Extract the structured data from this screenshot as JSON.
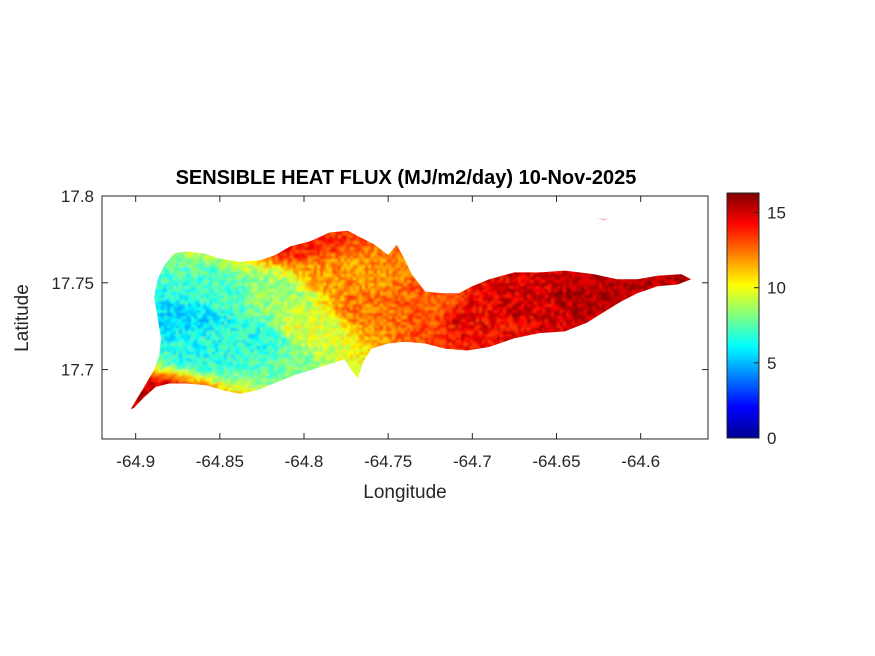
{
  "chart_data": {
    "type": "heatmap",
    "title": "SENSIBLE HEAT FLUX (MJ/m2/day) 10-Nov-2025",
    "xlabel": "Longitude",
    "ylabel": "Latitude",
    "xlim": [
      -64.92,
      -64.56
    ],
    "ylim": [
      17.66,
      17.8
    ],
    "x_ticks": [
      -64.9,
      -64.85,
      -64.8,
      -64.75,
      -64.7,
      -64.65,
      -64.6
    ],
    "x_tick_labels": [
      "-64.9",
      "-64.85",
      "-64.8",
      "-64.75",
      "-64.7",
      "-64.65",
      "-64.6"
    ],
    "y_ticks": [
      17.7,
      17.75,
      17.8
    ],
    "y_tick_labels": [
      "17.7",
      "17.75",
      "17.8"
    ],
    "colorbar": {
      "colormap": "jet",
      "limits": [
        0,
        16.3
      ],
      "ticks": [
        0,
        5,
        10,
        15
      ],
      "tick_labels": [
        "0",
        "5",
        "10",
        "15"
      ]
    },
    "grid": false,
    "island_outline": [
      [
        -64.901,
        17.678
      ],
      [
        -64.895,
        17.684
      ],
      [
        -64.888,
        17.69
      ],
      [
        -64.88,
        17.692
      ],
      [
        -64.87,
        17.692
      ],
      [
        -64.858,
        17.691
      ],
      [
        -64.848,
        17.688
      ],
      [
        -64.838,
        17.686
      ],
      [
        -64.828,
        17.688
      ],
      [
        -64.818,
        17.692
      ],
      [
        -64.805,
        17.697
      ],
      [
        -64.795,
        17.7
      ],
      [
        -64.782,
        17.704
      ],
      [
        -64.776,
        17.706
      ],
      [
        -64.772,
        17.7
      ],
      [
        -64.768,
        17.695
      ],
      [
        -64.765,
        17.704
      ],
      [
        -64.76,
        17.712
      ],
      [
        -64.75,
        17.715
      ],
      [
        -64.74,
        17.716
      ],
      [
        -64.728,
        17.715
      ],
      [
        -64.716,
        17.712
      ],
      [
        -64.703,
        17.711
      ],
      [
        -64.69,
        17.713
      ],
      [
        -64.675,
        17.718
      ],
      [
        -64.66,
        17.721
      ],
      [
        -64.645,
        17.722
      ],
      [
        -64.632,
        17.727
      ],
      [
        -64.622,
        17.733
      ],
      [
        -64.612,
        17.739
      ],
      [
        -64.602,
        17.744
      ],
      [
        -64.59,
        17.748
      ],
      [
        -64.578,
        17.749
      ],
      [
        -64.57,
        17.752
      ],
      [
        -64.576,
        17.755
      ],
      [
        -64.59,
        17.754
      ],
      [
        -64.602,
        17.752
      ],
      [
        -64.614,
        17.752
      ],
      [
        -64.628,
        17.755
      ],
      [
        -64.645,
        17.757
      ],
      [
        -64.66,
        17.756
      ],
      [
        -64.675,
        17.756
      ],
      [
        -64.69,
        17.752
      ],
      [
        -64.7,
        17.748
      ],
      [
        -64.708,
        17.744
      ],
      [
        -64.718,
        17.744
      ],
      [
        -64.728,
        17.745
      ],
      [
        -64.736,
        17.755
      ],
      [
        -64.741,
        17.765
      ],
      [
        -64.745,
        17.772
      ],
      [
        -64.75,
        17.766
      ],
      [
        -64.758,
        17.772
      ],
      [
        -64.766,
        17.776
      ],
      [
        -64.774,
        17.78
      ],
      [
        -64.785,
        17.779
      ],
      [
        -64.796,
        17.774
      ],
      [
        -64.808,
        17.771
      ],
      [
        -64.817,
        17.766
      ],
      [
        -64.826,
        17.763
      ],
      [
        -64.838,
        17.762
      ],
      [
        -64.85,
        17.764
      ],
      [
        -64.86,
        17.767
      ],
      [
        -64.87,
        17.768
      ],
      [
        -64.877,
        17.767
      ],
      [
        -64.883,
        17.76
      ],
      [
        -64.887,
        17.752
      ],
      [
        -64.889,
        17.742
      ],
      [
        -64.887,
        17.73
      ],
      [
        -64.885,
        17.718
      ],
      [
        -64.886,
        17.708
      ],
      [
        -64.889,
        17.7
      ],
      [
        -64.895,
        17.69
      ],
      [
        -64.9,
        17.682
      ],
      [
        -64.903,
        17.677
      ]
    ],
    "islet_outline": [
      [
        -64.626,
        17.787
      ],
      [
        -64.622,
        17.788
      ],
      [
        -64.619,
        17.787
      ],
      [
        -64.622,
        17.786
      ]
    ],
    "flux_pattern_notes": "Relative field: west end ~5-8 (cyan/green), central ~10-13 (yellow/orange), east end ~14-16 (red)",
    "flux_control_points": [
      {
        "lon": -64.87,
        "lat": 17.73,
        "value": 5.5
      },
      {
        "lon": -64.86,
        "lat": 17.715,
        "value": 6.5
      },
      {
        "lon": -64.85,
        "lat": 17.745,
        "value": 7.0
      },
      {
        "lon": -64.83,
        "lat": 17.72,
        "value": 6.5
      },
      {
        "lon": -64.82,
        "lat": 17.745,
        "value": 8.5
      },
      {
        "lon": -64.8,
        "lat": 17.725,
        "value": 9.5
      },
      {
        "lon": -64.78,
        "lat": 17.755,
        "value": 12.0
      },
      {
        "lon": -64.76,
        "lat": 17.735,
        "value": 12.5
      },
      {
        "lon": -64.73,
        "lat": 17.735,
        "value": 13.0
      },
      {
        "lon": -64.7,
        "lat": 17.73,
        "value": 14.5
      },
      {
        "lon": -64.67,
        "lat": 17.74,
        "value": 15.0
      },
      {
        "lon": -64.63,
        "lat": 17.742,
        "value": 15.5
      },
      {
        "lon": -64.59,
        "lat": 17.751,
        "value": 15.5
      },
      {
        "lon": -64.895,
        "lat": 17.683,
        "value": 15.0
      },
      {
        "lon": -64.805,
        "lat": 17.775,
        "value": 14.0
      }
    ]
  }
}
